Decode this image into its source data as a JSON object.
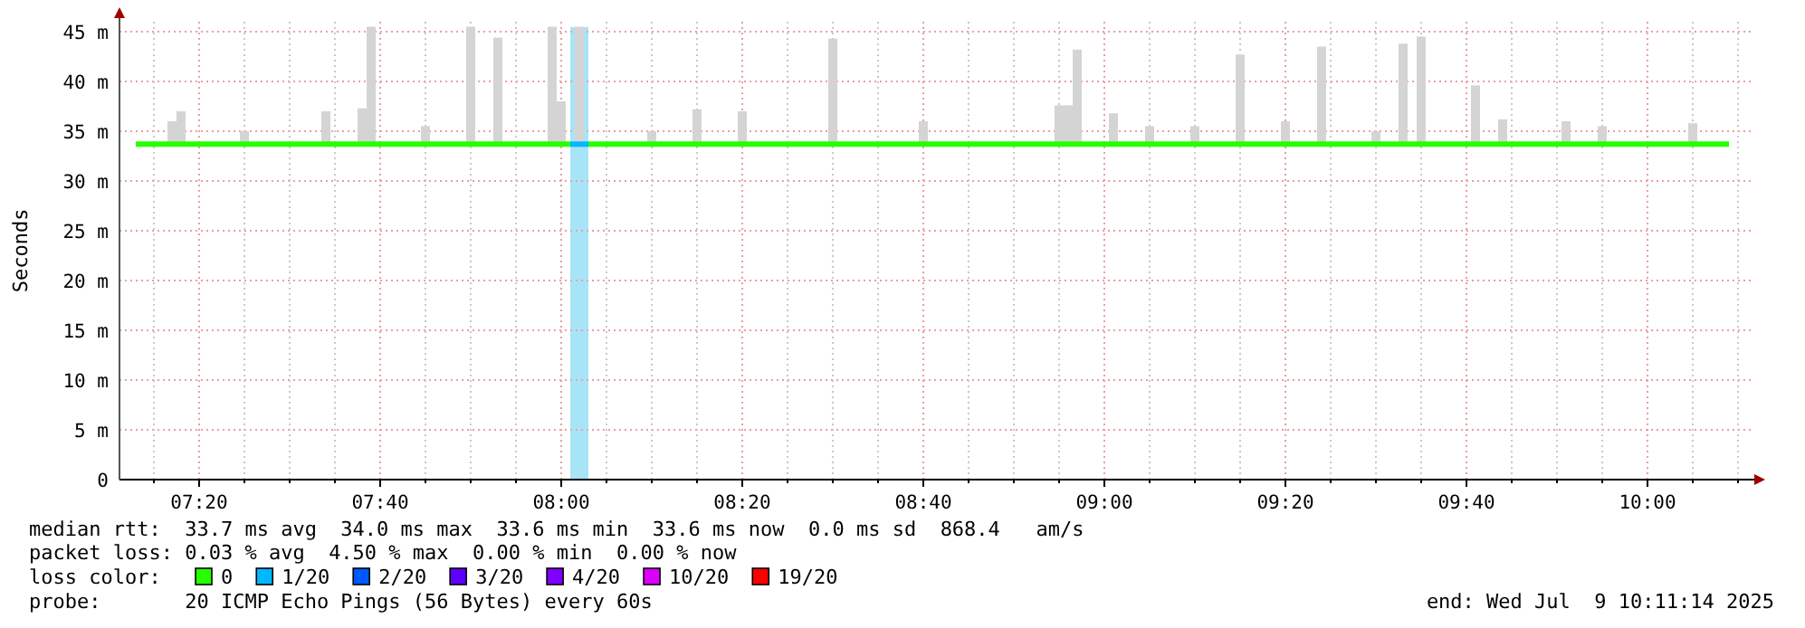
{
  "chart_data": {
    "type": "line",
    "ylabel": "Seconds",
    "legend_title": "loss color:",
    "legend": "bottom",
    "grid": true,
    "xlim": [
      7.1867,
      10.1933
    ],
    "xticks": [
      {
        "value": 7.25,
        "label": null
      },
      {
        "value": 7.3333,
        "label": "07:20"
      },
      {
        "value": 7.4167,
        "label": null
      },
      {
        "value": 7.5,
        "label": null
      },
      {
        "value": 7.5833,
        "label": null
      },
      {
        "value": 7.6667,
        "label": "07:40"
      },
      {
        "value": 7.75,
        "label": null
      },
      {
        "value": 7.8333,
        "label": null
      },
      {
        "value": 7.9167,
        "label": null
      },
      {
        "value": 8,
        "label": "08:00"
      },
      {
        "value": 8.0833,
        "label": null
      },
      {
        "value": 8.1667,
        "label": null
      },
      {
        "value": 8.25,
        "label": null
      },
      {
        "value": 8.3333,
        "label": "08:20"
      },
      {
        "value": 8.4167,
        "label": null
      },
      {
        "value": 8.5,
        "label": null
      },
      {
        "value": 8.5833,
        "label": null
      },
      {
        "value": 8.6667,
        "label": "08:40"
      },
      {
        "value": 8.75,
        "label": null
      },
      {
        "value": 8.8333,
        "label": null
      },
      {
        "value": 8.9167,
        "label": null
      },
      {
        "value": 9,
        "label": "09:00"
      },
      {
        "value": 9.0833,
        "label": null
      },
      {
        "value": 9.1667,
        "label": null
      },
      {
        "value": 9.25,
        "label": null
      },
      {
        "value": 9.3333,
        "label": "09:20"
      },
      {
        "value": 9.4167,
        "label": null
      },
      {
        "value": 9.5,
        "label": null
      },
      {
        "value": 9.5833,
        "label": null
      },
      {
        "value": 9.6667,
        "label": "09:40"
      },
      {
        "value": 9.75,
        "label": null
      },
      {
        "value": 9.8333,
        "label": null
      },
      {
        "value": 9.9167,
        "label": null
      },
      {
        "value": 10,
        "label": "10:00"
      },
      {
        "value": 10.0833,
        "label": null
      },
      {
        "value": 10.1667,
        "label": null
      }
    ],
    "ylim": [
      0,
      46
    ],
    "yticks": [
      0,
      {
        "value": 5,
        "label": "5 m"
      },
      {
        "value": 10,
        "label": "10 m"
      },
      {
        "value": 15,
        "label": "15 m"
      },
      {
        "value": 20,
        "label": "20 m"
      },
      {
        "value": 25,
        "label": "25 m"
      },
      {
        "value": 30,
        "label": "30 m"
      },
      {
        "value": 35,
        "label": "35 m"
      },
      {
        "value": 40,
        "label": "40 m"
      },
      {
        "value": 45,
        "label": "45 m"
      }
    ],
    "bands": [
      {
        "axis": "x",
        "from": 8.0167,
        "to": 8.05,
        "color": "#a8e4f8"
      }
    ],
    "series": [
      {
        "type": "bar",
        "color": "#d4d4d4",
        "x": [
          7.2833,
          7.3,
          7.4167,
          7.5667,
          7.6333,
          7.65,
          7.75,
          7.8333,
          7.8833,
          7.9833,
          8,
          8.0333,
          8.1667,
          8.25,
          8.3333,
          8.5,
          8.6667,
          8.9167,
          8.9333,
          8.95,
          9.0167,
          9.0833,
          9.1667,
          9.25,
          9.3333,
          9.4,
          9.5,
          9.55,
          9.5833,
          9.6833,
          9.7333,
          9.85,
          9.9167,
          10.0833
        ],
        "base": [
          33.6,
          33.6,
          33.6,
          33.6,
          33.6,
          33.6,
          33.6,
          33.6,
          33.6,
          33.6,
          33.6,
          33.6,
          33.6,
          33.6,
          33.6,
          33.6,
          33.6,
          33.6,
          33.6,
          33.6,
          33.6,
          33.6,
          33.6,
          33.6,
          33.6,
          33.6,
          33.6,
          33.6,
          33.6,
          33.6,
          33.6,
          33.6,
          33.6,
          33.6
        ],
        "values": [
          2.4,
          3.4,
          1.4,
          3.4,
          3.7,
          11.9,
          1.9,
          11.9,
          10.8,
          11.9,
          4.4,
          11.9,
          1.4,
          3.6,
          3.4,
          10.7,
          2.4,
          4,
          4,
          9.6,
          3.2,
          1.9,
          1.9,
          9.1,
          2.4,
          9.9,
          1.4,
          10.2,
          10.9,
          6,
          2.6,
          2.4,
          1.9,
          2.2
        ]
      },
      {
        "name": "0",
        "color": "#26ff00",
        "x": [
          7.2167,
          8.0167,
          null,
          8.05,
          10.15
        ],
        "values": [
          33.7,
          33.7,
          null,
          33.7,
          33.7
        ]
      },
      {
        "name": "1/20",
        "color": "#00b8ff",
        "x": [
          8.0167,
          8.05
        ],
        "values": [
          33.7,
          33.7
        ]
      },
      {
        "name": "2/20",
        "color": "#0059ff"
      },
      {
        "name": "3/20",
        "color": "#5e00ff"
      },
      {
        "name": "4/20",
        "color": "#7e00ff"
      },
      {
        "name": "10/20",
        "color": "#dd00ff"
      },
      {
        "name": "19/20",
        "color": "#ff0000"
      }
    ],
    "annotations": [
      "median rtt:  33.7 ms avg  34.0 ms max  33.6 ms min  33.6 ms now  0.0 ms sd  868.4   am/s",
      "packet loss: 0.03 % avg  4.50 % max  0.00 % min  0.00 % now",
      "probe:       20 ICMP Echo Pings (56 Bytes) every 60s",
      "end: Wed Jul  9 10:11:14 2025"
    ]
  }
}
